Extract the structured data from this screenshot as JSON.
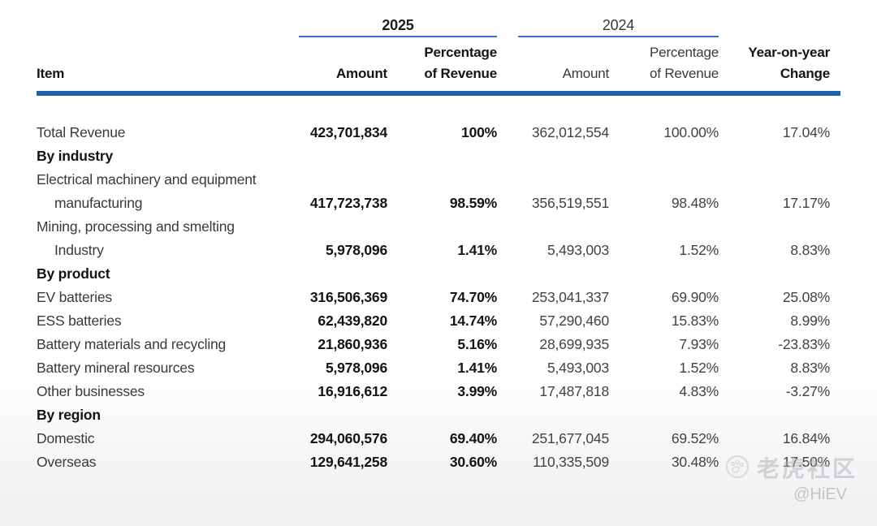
{
  "header": {
    "item_label": "Item",
    "group_2025": {
      "label": "2025",
      "amount": "Amount",
      "pct_line1": "Percentage",
      "pct_line2": "of Revenue"
    },
    "group_2024": {
      "label": "2024",
      "amount": "Amount",
      "pct_line1": "Percentage",
      "pct_line2": "of Revenue"
    },
    "yoy_line1": "Year-on-year",
    "yoy_line2": "Change"
  },
  "table": {
    "rows": [
      {
        "label": "Total Revenue",
        "indent": 0,
        "section": false,
        "a25": "423,701,834",
        "p25": "100%",
        "a24": "362,012,554",
        "p24": "100.00%",
        "yoy": "17.04%"
      },
      {
        "label": "By industry",
        "indent": 0,
        "section": true
      },
      {
        "label": "Electrical machinery and equipment",
        "indent": 0,
        "section": false
      },
      {
        "label": "manufacturing",
        "indent": 1,
        "section": false,
        "a25": "417,723,738",
        "p25": "98.59%",
        "a24": "356,519,551",
        "p24": "98.48%",
        "yoy": "17.17%"
      },
      {
        "label": "Mining, processing and smelting",
        "indent": 0,
        "section": false
      },
      {
        "label": "Industry",
        "indent": 1,
        "section": false,
        "a25": "5,978,096",
        "p25": "1.41%",
        "a24": "5,493,003",
        "p24": "1.52%",
        "yoy": "8.83%"
      },
      {
        "label": "By product",
        "indent": 0,
        "section": true
      },
      {
        "label": "EV batteries",
        "indent": 0,
        "section": false,
        "a25": "316,506,369",
        "p25": "74.70%",
        "a24": "253,041,337",
        "p24": "69.90%",
        "yoy": "25.08%"
      },
      {
        "label": "ESS batteries",
        "indent": 0,
        "section": false,
        "a25": "62,439,820",
        "p25": "14.74%",
        "a24": "57,290,460",
        "p24": "15.83%",
        "yoy": "8.99%"
      },
      {
        "label": "Battery materials and recycling",
        "indent": 0,
        "section": false,
        "a25": "21,860,936",
        "p25": "5.16%",
        "a24": "28,699,935",
        "p24": "7.93%",
        "yoy": "-23.83%"
      },
      {
        "label": "Battery mineral resources",
        "indent": 0,
        "section": false,
        "a25": "5,978,096",
        "p25": "1.41%",
        "a24": "5,493,003",
        "p24": "1.52%",
        "yoy": "8.83%"
      },
      {
        "label": "Other businesses",
        "indent": 0,
        "section": false,
        "a25": "16,916,612",
        "p25": "3.99%",
        "a24": "17,487,818",
        "p24": "4.83%",
        "yoy": "-3.27%"
      },
      {
        "label": "By region",
        "indent": 0,
        "section": true
      },
      {
        "label": "Domestic",
        "indent": 0,
        "section": false,
        "a25": "294,060,576",
        "p25": "69.40%",
        "a24": "251,677,045",
        "p24": "69.52%",
        "yoy": "16.84%"
      },
      {
        "label": "Overseas",
        "indent": 0,
        "section": false,
        "a25": "129,641,258",
        "p25": "30.60%",
        "a24": "110,335,509",
        "p24": "30.48%",
        "yoy": "17.50%"
      }
    ]
  },
  "watermark": {
    "community": "老虎社区",
    "handle": "@HiEV"
  },
  "colors": {
    "thick_line_blue": "#1e62ad",
    "thin_line_blue": "#3173c2",
    "text_dark": "#141416",
    "text_regular": "#3a3a3c",
    "watermark_gray": "#c7c7cc"
  }
}
